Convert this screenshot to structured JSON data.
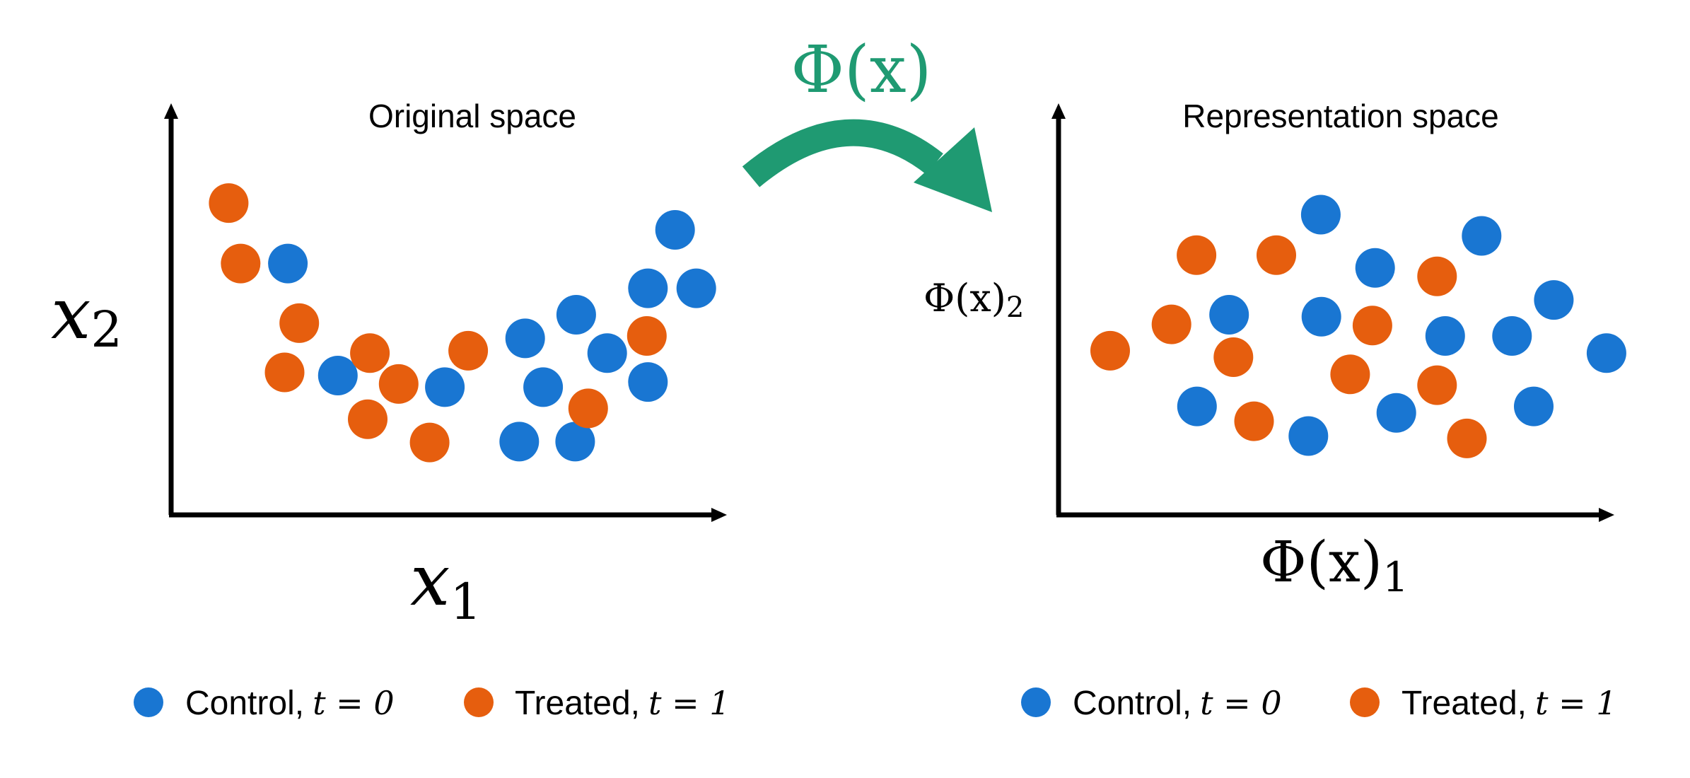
{
  "colors": {
    "control": "#1976D2",
    "treated": "#E65E0E",
    "arrow": "#1F9A72",
    "axis": "#000000"
  },
  "left_panel": {
    "title": "Original space",
    "xlabel": {
      "base": "x",
      "sub": "1"
    },
    "ylabel": {
      "base": "x",
      "sub": "2"
    },
    "legend": {
      "control": {
        "text": "Control,",
        "math": "t = 0"
      },
      "treated": {
        "text": "Treated,",
        "math": "t = 1"
      }
    }
  },
  "right_panel": {
    "title": "Representation space",
    "xlabel": {
      "base": "Φ(x)",
      "sub": "1"
    },
    "ylabel": {
      "base": "Φ(x)",
      "sub": "2"
    },
    "legend": {
      "control": {
        "text": "Control,",
        "math": "t = 0"
      },
      "treated": {
        "text": "Treated,",
        "math": "t = 1"
      }
    }
  },
  "mapping": {
    "label": "Φ(x)"
  },
  "chart_data": [
    {
      "type": "scatter",
      "title": "Original space",
      "xlabel": "x1",
      "ylabel": "x2",
      "xlim": [
        0,
        100
      ],
      "ylim": [
        0,
        100
      ],
      "series": [
        {
          "name": "Control, t = 0",
          "color": "#1976D2",
          "points": [
            [
              21.5,
              62.8
            ],
            [
              30.7,
              34.8
            ],
            [
              50.4,
              31.9
            ],
            [
              64.1,
              18.3
            ],
            [
              65.2,
              44.1
            ],
            [
              68.5,
              31.9
            ],
            [
              74.6,
              50.0
            ],
            [
              74.4,
              18.3
            ],
            [
              80.3,
              40.4
            ],
            [
              87.8,
              56.6
            ],
            [
              87.8,
              33.2
            ],
            [
              92.8,
              71.2
            ],
            [
              96.7,
              56.6
            ]
          ]
        },
        {
          "name": "Treated, t = 1",
          "color": "#E65E0E",
          "points": [
            [
              10.6,
              77.9
            ],
            [
              12.8,
              62.8
            ],
            [
              23.6,
              47.9
            ],
            [
              20.9,
              35.6
            ],
            [
              36.2,
              23.9
            ],
            [
              36.6,
              40.4
            ],
            [
              41.9,
              32.7
            ],
            [
              47.6,
              18.1
            ],
            [
              54.7,
              41.0
            ],
            [
              76.8,
              26.6
            ],
            [
              87.6,
              44.7
            ]
          ]
        }
      ]
    },
    {
      "type": "scatter",
      "title": "Representation space",
      "xlabel": "Φ(x)1",
      "ylabel": "Φ(x)2",
      "xlim": [
        0,
        100
      ],
      "ylim": [
        0,
        100
      ],
      "series": [
        {
          "name": "Control, t = 0",
          "color": "#1976D2",
          "points": [
            [
              31.4,
              50.0
            ],
            [
              25.5,
              27.1
            ],
            [
              48.3,
              75.0
            ],
            [
              48.4,
              49.5
            ],
            [
              46.0,
              19.7
            ],
            [
              58.3,
              61.7
            ],
            [
              62.2,
              25.5
            ],
            [
              71.2,
              44.7
            ],
            [
              77.9,
              69.7
            ],
            [
              83.5,
              44.7
            ],
            [
              87.5,
              27.1
            ],
            [
              91.2,
              53.7
            ],
            [
              100.9,
              40.4
            ]
          ]
        },
        {
          "name": "Treated, t = 1",
          "color": "#E65E0E",
          "points": [
            [
              25.4,
              64.9
            ],
            [
              40.1,
              64.9
            ],
            [
              20.8,
              47.6
            ],
            [
              9.5,
              41.0
            ],
            [
              32.2,
              39.4
            ],
            [
              36.0,
              23.4
            ],
            [
              57.8,
              47.3
            ],
            [
              53.7,
              35.1
            ],
            [
              69.7,
              59.6
            ],
            [
              69.7,
              32.4
            ],
            [
              75.2,
              19.1
            ]
          ]
        }
      ]
    }
  ]
}
